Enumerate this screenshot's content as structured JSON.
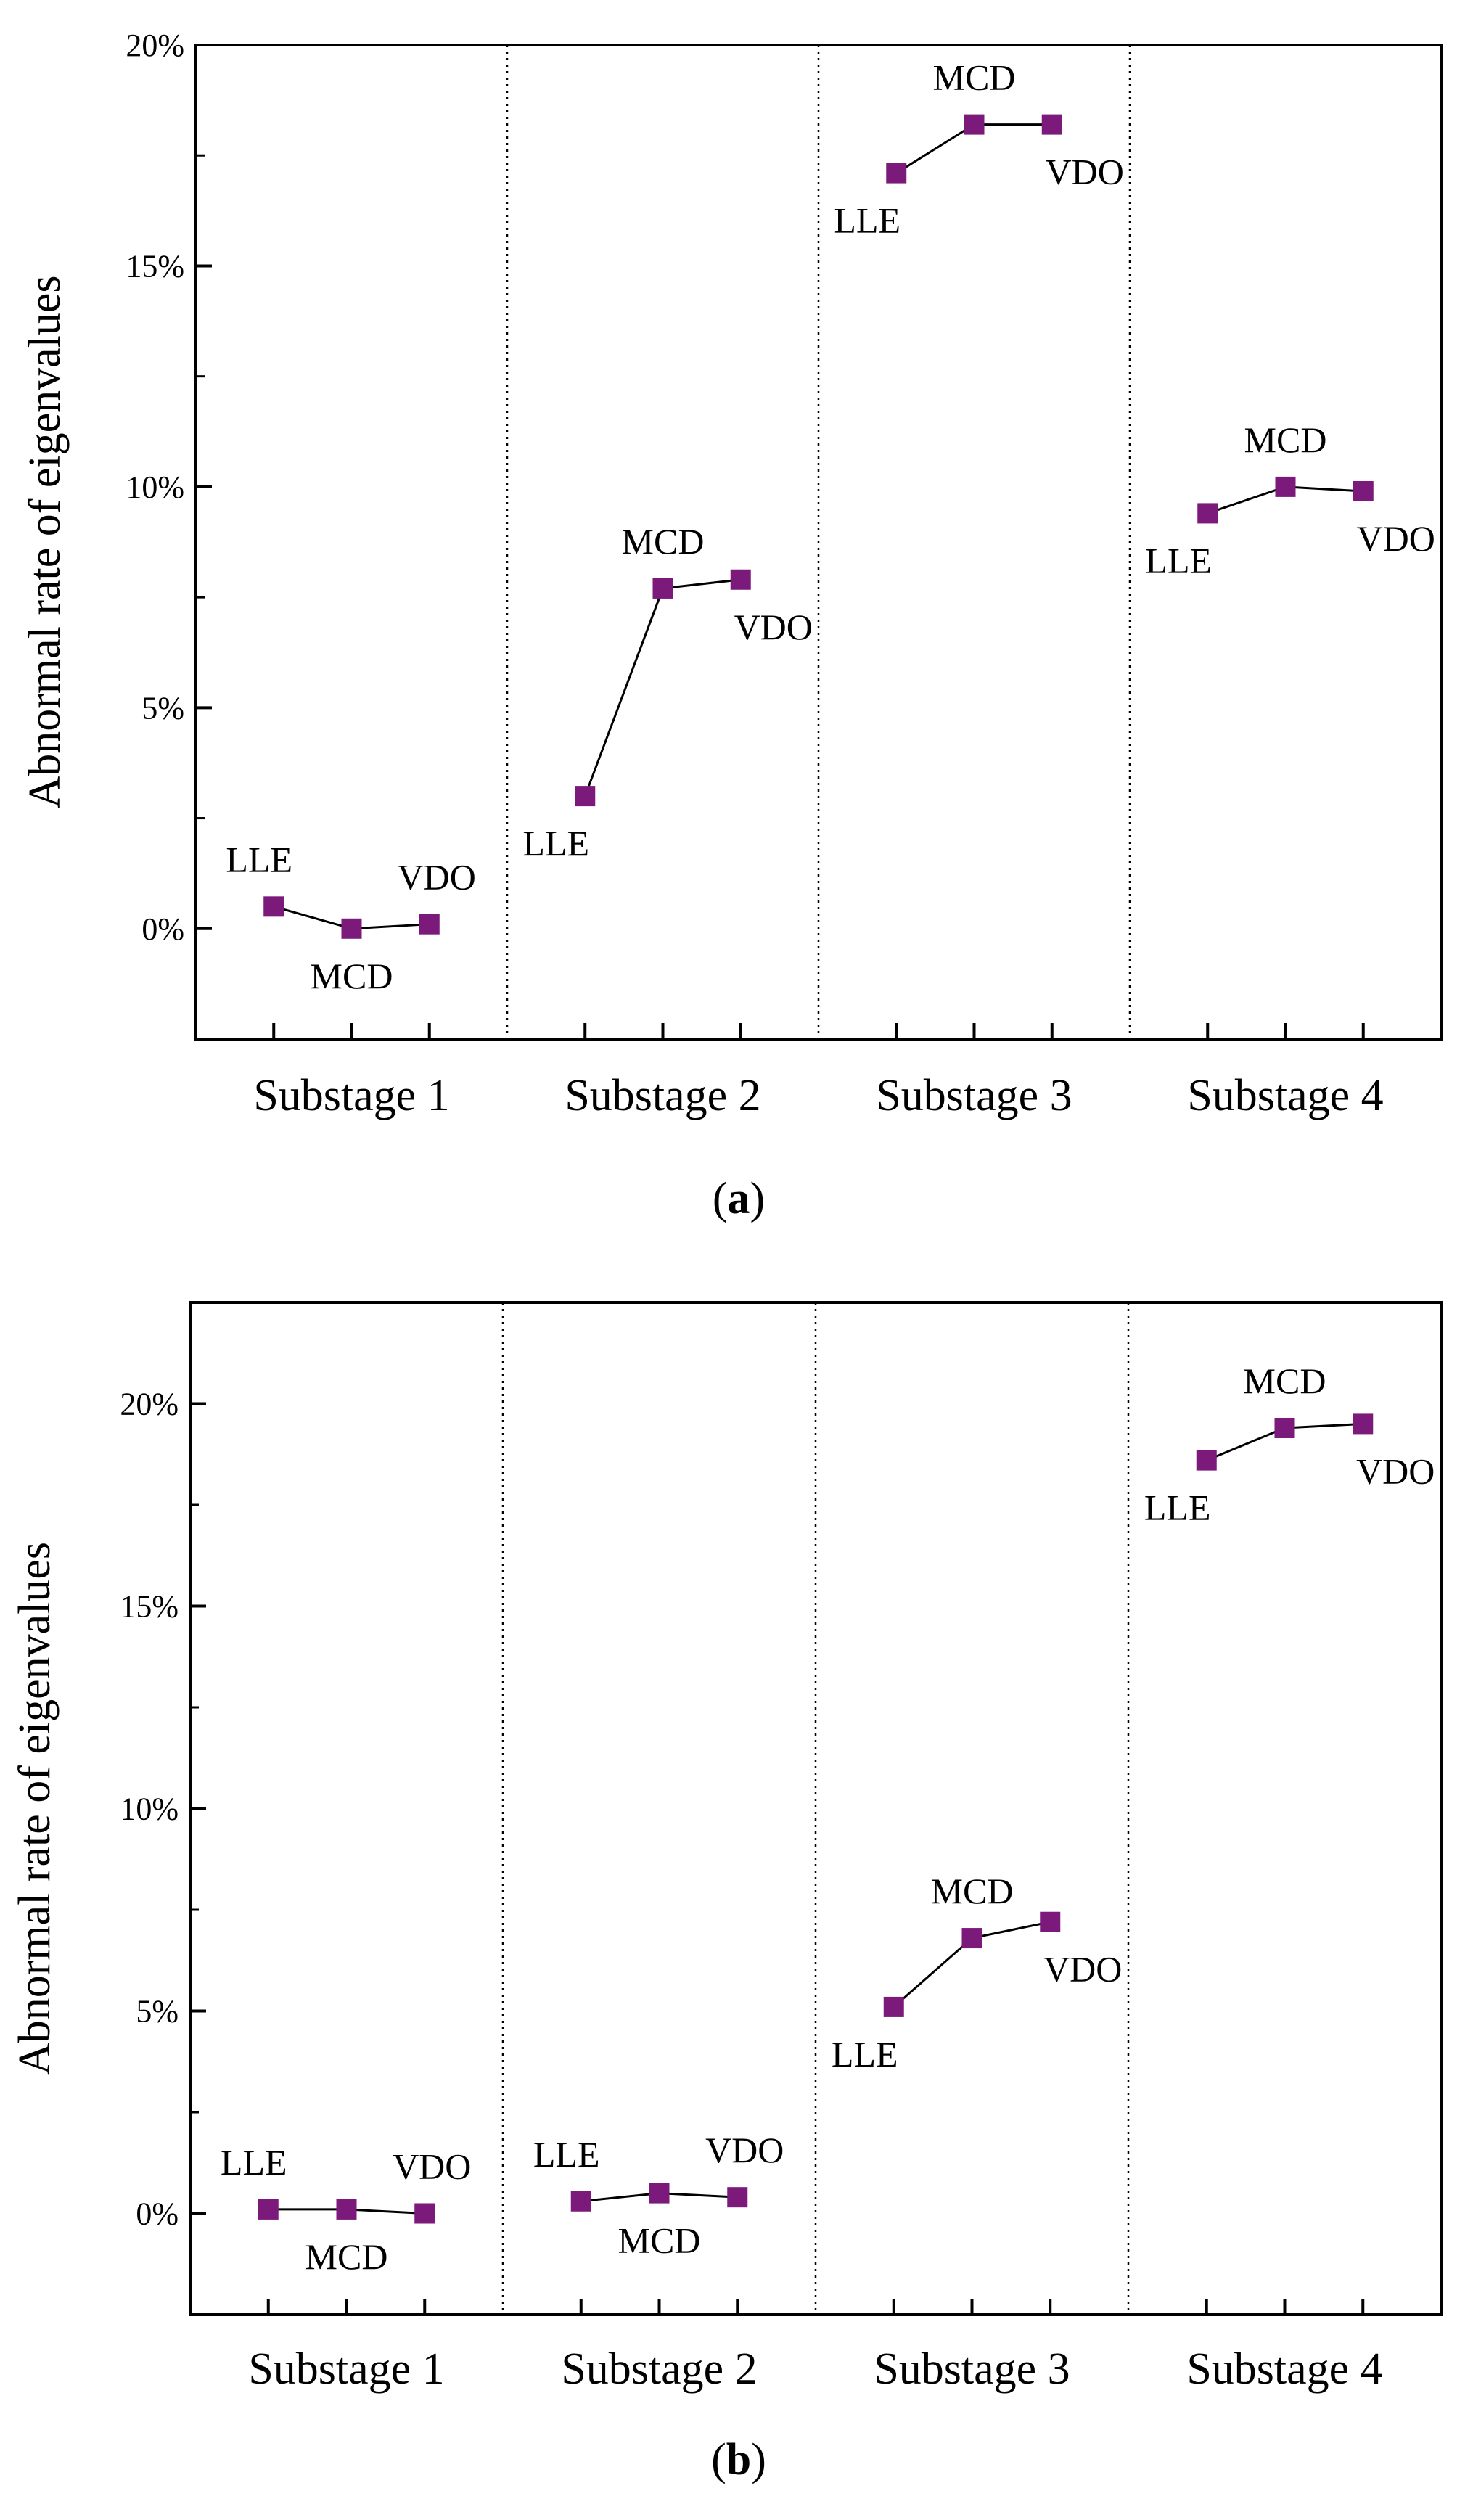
{
  "chart_data": [
    {
      "type": "line",
      "caption_letter": "a",
      "ylabel": "Abnormal rate of eigenvalues",
      "ylim": [
        -2.5,
        20
      ],
      "yticks": [
        0,
        5,
        10,
        15,
        20
      ],
      "ytick_labels": [
        "0%",
        "5%",
        "10%",
        "15%",
        "20%"
      ],
      "grid": false,
      "separators": "dotted vertical lines between substages",
      "substages": [
        {
          "name": "Substage 1",
          "points": [
            {
              "method": "LLE",
              "value": 0.5,
              "label_pos": "above"
            },
            {
              "method": "MCD",
              "value": 0.0,
              "label_pos": "below"
            },
            {
              "method": "VDO",
              "value": 0.1,
              "label_pos": "above"
            }
          ]
        },
        {
          "name": "Substage 2",
          "points": [
            {
              "method": "LLE",
              "value": 3.0,
              "label_pos": "below"
            },
            {
              "method": "MCD",
              "value": 7.7,
              "label_pos": "above"
            },
            {
              "method": "VDO",
              "value": 7.9,
              "label_pos": "below"
            }
          ]
        },
        {
          "name": "Substage 3",
          "points": [
            {
              "method": "LLE",
              "value": 17.1,
              "label_pos": "below"
            },
            {
              "method": "MCD",
              "value": 18.2,
              "label_pos": "above"
            },
            {
              "method": "VDO",
              "value": 18.2,
              "label_pos": "below"
            }
          ]
        },
        {
          "name": "Substage 4",
          "points": [
            {
              "method": "LLE",
              "value": 9.4,
              "label_pos": "below"
            },
            {
              "method": "MCD",
              "value": 10.0,
              "label_pos": "above"
            },
            {
              "method": "VDO",
              "value": 9.9,
              "label_pos": "below"
            }
          ]
        }
      ]
    },
    {
      "type": "line",
      "caption_letter": "b",
      "ylabel": "Abnormal rate of eigenvalues",
      "ylim": [
        -2.5,
        22.5
      ],
      "yticks": [
        0,
        5,
        10,
        15,
        20
      ],
      "ytick_labels": [
        "0%",
        "5%",
        "10%",
        "15%",
        "20%"
      ],
      "grid": false,
      "separators": "dotted vertical lines between substages",
      "substages": [
        {
          "name": "Substage 1",
          "points": [
            {
              "method": "LLE",
              "value": 0.1,
              "label_pos": "above"
            },
            {
              "method": "MCD",
              "value": 0.1,
              "label_pos": "below"
            },
            {
              "method": "VDO",
              "value": 0.0,
              "label_pos": "above"
            }
          ]
        },
        {
          "name": "Substage 2",
          "points": [
            {
              "method": "LLE",
              "value": 0.3,
              "label_pos": "above"
            },
            {
              "method": "MCD",
              "value": 0.5,
              "label_pos": "below"
            },
            {
              "method": "VDO",
              "value": 0.4,
              "label_pos": "above"
            }
          ]
        },
        {
          "name": "Substage 3",
          "points": [
            {
              "method": "LLE",
              "value": 5.1,
              "label_pos": "below"
            },
            {
              "method": "MCD",
              "value": 6.8,
              "label_pos": "above"
            },
            {
              "method": "VDO",
              "value": 7.2,
              "label_pos": "below"
            }
          ]
        },
        {
          "name": "Substage 4",
          "points": [
            {
              "method": "LLE",
              "value": 18.6,
              "label_pos": "below"
            },
            {
              "method": "MCD",
              "value": 19.4,
              "label_pos": "above"
            },
            {
              "method": "VDO",
              "value": 19.5,
              "label_pos": "below"
            }
          ]
        }
      ]
    }
  ],
  "colors": {
    "marker": "#7B1A7B",
    "line": "#000000",
    "axis": "#000000",
    "separator": "#000000"
  }
}
